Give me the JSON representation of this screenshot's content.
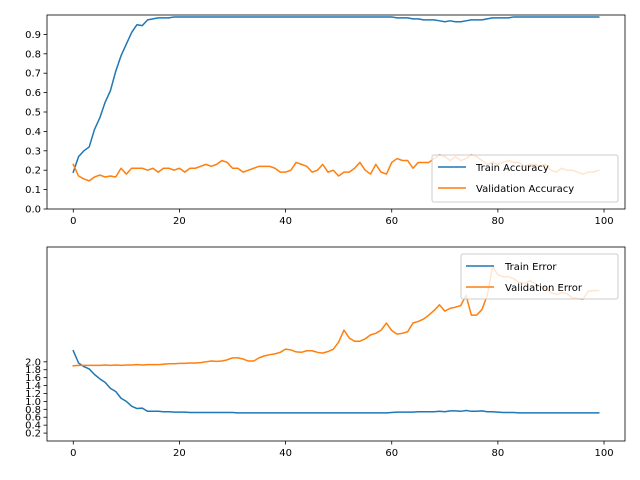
{
  "colors": {
    "train": "#1f77b4",
    "validation": "#ff7f0e"
  },
  "chart_data": [
    {
      "type": "line",
      "title": "",
      "xlabel": "",
      "ylabel": "",
      "xlim": [
        -4.95,
        103.95
      ],
      "ylim": [
        0.0,
        1.0
      ],
      "xticks": [
        0,
        20,
        40,
        60,
        80,
        100
      ],
      "xtick_labels": [
        "0",
        "20",
        "40",
        "60",
        "80",
        "100"
      ],
      "yticks": [
        0.0,
        0.1,
        0.2,
        0.3,
        0.4,
        0.5,
        0.6,
        0.7,
        0.8,
        0.9
      ],
      "ytick_labels": [
        "0.0",
        "0.1",
        "0.2",
        "0.3",
        "0.4",
        "0.5",
        "0.6",
        "0.7",
        "0.8",
        "0.9"
      ],
      "legend": {
        "placement": "lower-right",
        "entries": [
          "Train Accuracy",
          "Validation Accuracy"
        ]
      },
      "grid": false,
      "series": [
        {
          "name": "Train Accuracy",
          "color": "#1f77b4",
          "values": [
            0.19,
            0.27,
            0.3,
            0.32,
            0.41,
            0.47,
            0.55,
            0.61,
            0.71,
            0.79,
            0.85,
            0.91,
            0.95,
            0.945,
            0.975,
            0.98,
            0.985,
            0.985,
            0.985,
            0.99,
            0.99,
            0.99,
            0.99,
            0.99,
            0.99,
            0.99,
            0.99,
            0.99,
            0.99,
            0.99,
            0.99,
            0.99,
            0.99,
            0.99,
            0.99,
            0.99,
            0.99,
            0.99,
            0.99,
            0.99,
            0.99,
            0.99,
            0.99,
            0.99,
            0.99,
            0.99,
            0.99,
            0.99,
            0.99,
            0.99,
            0.99,
            0.99,
            0.99,
            0.99,
            0.99,
            0.99,
            0.99,
            0.99,
            0.99,
            0.99,
            0.99,
            0.985,
            0.985,
            0.985,
            0.98,
            0.98,
            0.975,
            0.975,
            0.975,
            0.97,
            0.965,
            0.97,
            0.965,
            0.965,
            0.97,
            0.975,
            0.975,
            0.975,
            0.98,
            0.985,
            0.985,
            0.985,
            0.985,
            0.99,
            0.99,
            0.99,
            0.99,
            0.99,
            0.99,
            0.99,
            0.99,
            0.99,
            0.99,
            0.99,
            0.99,
            0.99,
            0.99,
            0.99,
            0.99,
            0.99
          ]
        },
        {
          "name": "Validation Accuracy",
          "color": "#ff7f0e",
          "values": [
            0.23,
            0.17,
            0.155,
            0.145,
            0.165,
            0.175,
            0.165,
            0.17,
            0.165,
            0.21,
            0.18,
            0.21,
            0.21,
            0.21,
            0.2,
            0.21,
            0.19,
            0.21,
            0.21,
            0.2,
            0.21,
            0.19,
            0.21,
            0.21,
            0.22,
            0.23,
            0.22,
            0.23,
            0.25,
            0.24,
            0.21,
            0.21,
            0.19,
            0.2,
            0.21,
            0.22,
            0.22,
            0.22,
            0.21,
            0.19,
            0.19,
            0.2,
            0.24,
            0.23,
            0.22,
            0.19,
            0.2,
            0.23,
            0.19,
            0.2,
            0.17,
            0.19,
            0.19,
            0.21,
            0.24,
            0.2,
            0.18,
            0.23,
            0.19,
            0.18,
            0.24,
            0.26,
            0.25,
            0.25,
            0.21,
            0.24,
            0.24,
            0.24,
            0.26,
            0.28,
            0.27,
            0.25,
            0.27,
            0.25,
            0.26,
            0.28,
            0.27,
            0.25,
            0.23,
            0.24,
            0.23,
            0.24,
            0.25,
            0.24,
            0.24,
            0.22,
            0.23,
            0.23,
            0.22,
            0.23,
            0.2,
            0.19,
            0.21,
            0.2,
            0.2,
            0.19,
            0.18,
            0.19,
            0.19,
            0.2
          ]
        }
      ]
    },
    {
      "type": "line",
      "title": "",
      "xlabel": "",
      "ylabel": "",
      "xlim": [
        -4.95,
        103.95
      ],
      "ylim": [
        0.0,
        4.9
      ],
      "xticks": [
        0,
        20,
        40,
        60,
        80,
        100
      ],
      "xtick_labels": [
        "0",
        "20",
        "40",
        "60",
        "80",
        "100"
      ],
      "yticks": [
        0.2,
        0.4,
        0.6,
        0.8,
        1.0,
        1.2,
        1.4,
        1.6,
        1.8,
        2.0
      ],
      "ytick_labels": [
        "0.2",
        "0.4",
        "0.6",
        "0.8",
        "1.0",
        "1.2",
        "1.4",
        "1.6",
        "1.8",
        "2.0"
      ],
      "legend": {
        "placement": "upper-right",
        "entries": [
          "Train Error",
          "Validation Error"
        ]
      },
      "grid": false,
      "series": [
        {
          "name": "Train Error",
          "color": "#1f77b4",
          "values": [
            2.28,
            1.97,
            1.88,
            1.82,
            1.68,
            1.57,
            1.48,
            1.33,
            1.25,
            1.08,
            1.0,
            0.88,
            0.82,
            0.83,
            0.75,
            0.75,
            0.75,
            0.74,
            0.74,
            0.73,
            0.73,
            0.73,
            0.72,
            0.72,
            0.72,
            0.72,
            0.72,
            0.72,
            0.72,
            0.72,
            0.72,
            0.71,
            0.71,
            0.71,
            0.71,
            0.71,
            0.71,
            0.71,
            0.71,
            0.71,
            0.71,
            0.71,
            0.71,
            0.71,
            0.71,
            0.71,
            0.71,
            0.71,
            0.71,
            0.71,
            0.71,
            0.71,
            0.71,
            0.71,
            0.71,
            0.71,
            0.71,
            0.71,
            0.71,
            0.71,
            0.72,
            0.73,
            0.73,
            0.73,
            0.73,
            0.74,
            0.74,
            0.74,
            0.74,
            0.75,
            0.74,
            0.76,
            0.76,
            0.75,
            0.77,
            0.75,
            0.75,
            0.76,
            0.74,
            0.74,
            0.73,
            0.72,
            0.72,
            0.72,
            0.71,
            0.71,
            0.71,
            0.71,
            0.71,
            0.71,
            0.71,
            0.71,
            0.71,
            0.71,
            0.71,
            0.71,
            0.71,
            0.71,
            0.71,
            0.71
          ]
        },
        {
          "name": "Validation Error",
          "color": "#ff7f0e",
          "values": [
            1.9,
            1.91,
            1.91,
            1.91,
            1.91,
            1.91,
            1.92,
            1.91,
            1.92,
            1.91,
            1.92,
            1.92,
            1.93,
            1.92,
            1.93,
            1.93,
            1.93,
            1.94,
            1.95,
            1.95,
            1.96,
            1.96,
            1.97,
            1.97,
            1.98,
            2.0,
            2.02,
            2.01,
            2.02,
            2.05,
            2.1,
            2.1,
            2.07,
            2.02,
            2.02,
            2.1,
            2.15,
            2.18,
            2.2,
            2.24,
            2.32,
            2.3,
            2.25,
            2.24,
            2.28,
            2.28,
            2.24,
            2.22,
            2.26,
            2.32,
            2.5,
            2.8,
            2.6,
            2.52,
            2.52,
            2.58,
            2.68,
            2.72,
            2.8,
            2.98,
            2.79,
            2.7,
            2.72,
            2.76,
            2.98,
            3.02,
            3.08,
            3.18,
            3.3,
            3.44,
            3.28,
            3.35,
            3.38,
            3.42,
            3.68,
            3.18,
            3.18,
            3.32,
            3.68,
            4.4,
            4.2,
            4.15,
            4.15,
            4.1,
            4.0,
            3.98,
            4.05,
            3.98,
            3.9,
            3.85,
            3.75,
            3.7,
            3.75,
            3.72,
            3.62,
            3.6,
            3.58,
            3.78,
            3.8,
            3.8
          ]
        }
      ]
    }
  ]
}
